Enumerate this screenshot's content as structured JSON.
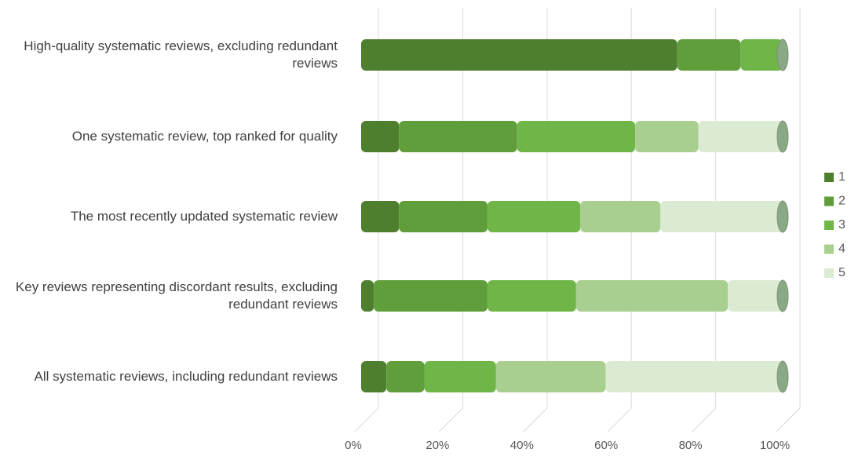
{
  "chart_data": {
    "type": "stacked-bar-horizontal",
    "categories": [
      "High-quality systematic reviews, excluding redundant reviews",
      "One systematic review, top ranked for quality",
      "The most recently updated systematic review",
      "Key reviews representing discordant results, excluding redundant reviews",
      "All systematic reviews, including redundant reviews"
    ],
    "series": [
      {
        "name": "1",
        "color": "#4e7f2f",
        "values": [
          75,
          9,
          9,
          3,
          6
        ]
      },
      {
        "name": "2",
        "color": "#5f9e3a",
        "values": [
          15,
          28,
          21,
          27,
          9
        ]
      },
      {
        "name": "3",
        "color": "#70b547",
        "values": [
          10,
          28,
          22,
          21,
          17
        ]
      },
      {
        "name": "4",
        "color": "#a8cf8f",
        "values": [
          0,
          15,
          19,
          36,
          26
        ]
      },
      {
        "name": "5",
        "color": "#dbebd2",
        "values": [
          0,
          20,
          29,
          13,
          42
        ]
      }
    ],
    "xlim": [
      0,
      100
    ],
    "xticks": [
      {
        "value": 0,
        "label": "0%"
      },
      {
        "value": 20,
        "label": "20%"
      },
      {
        "value": 40,
        "label": "40%"
      },
      {
        "value": 60,
        "label": "60%"
      },
      {
        "value": 80,
        "label": "80%"
      },
      {
        "value": 100,
        "label": "100%"
      }
    ],
    "grid": true,
    "legend": "right"
  }
}
